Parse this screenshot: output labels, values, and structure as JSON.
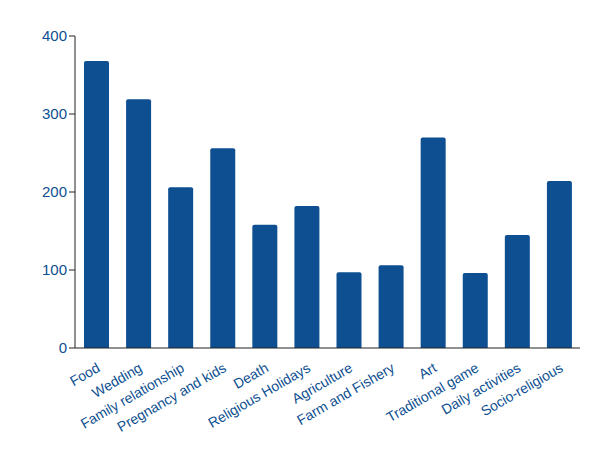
{
  "chart_data": {
    "type": "bar",
    "categories": [
      "Food",
      "Wedding",
      "Family relationship",
      "Pregnancy and kids",
      "Death",
      "Religious Holidays",
      "Agriculture",
      "Farm and Fishery",
      "Art",
      "Traditional game",
      "Daily activities",
      "Socio-religious"
    ],
    "values": [
      368,
      319,
      206,
      256,
      158,
      182,
      97,
      106,
      270,
      96,
      145,
      214
    ],
    "color": "#0d4f91",
    "ylim": [
      0,
      400
    ],
    "yticks": [
      0,
      100,
      200,
      300,
      400
    ],
    "grid": false
  }
}
